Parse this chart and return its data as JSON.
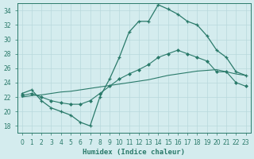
{
  "xlabel": "Humidex (Indice chaleur)",
  "bg_color": "#d4ecee",
  "grid_color": "#b8d8dc",
  "line_color": "#2a7a6a",
  "xlim": [
    -0.5,
    23.5
  ],
  "ylim": [
    17,
    35
  ],
  "yticks": [
    18,
    20,
    22,
    24,
    26,
    28,
    30,
    32,
    34
  ],
  "xticks": [
    0,
    1,
    2,
    3,
    4,
    5,
    6,
    7,
    8,
    9,
    10,
    11,
    12,
    13,
    14,
    15,
    16,
    17,
    18,
    19,
    20,
    21,
    22,
    23
  ],
  "series1_x": [
    0,
    1,
    2,
    3,
    4,
    5,
    6,
    7,
    8,
    9,
    10,
    11,
    12,
    13,
    14,
    15,
    16,
    17,
    18,
    19,
    20,
    21,
    22,
    23
  ],
  "series1_y": [
    22.5,
    23.0,
    21.5,
    20.5,
    20.0,
    19.5,
    18.5,
    18.0,
    22.0,
    24.5,
    27.5,
    31.0,
    32.5,
    32.5,
    34.8,
    34.2,
    33.5,
    32.5,
    32.0,
    30.5,
    28.5,
    27.5,
    25.5,
    25.0
  ],
  "series2_x": [
    0,
    1,
    2,
    3,
    4,
    5,
    6,
    7,
    8,
    9,
    10,
    11,
    12,
    13,
    14,
    15,
    16,
    17,
    18,
    19,
    20,
    21,
    22,
    23
  ],
  "series2_y": [
    22.2,
    22.5,
    22.0,
    21.5,
    21.2,
    21.0,
    21.0,
    21.5,
    22.5,
    23.5,
    24.5,
    25.2,
    25.8,
    26.5,
    27.5,
    28.0,
    28.5,
    28.0,
    27.5,
    27.0,
    25.5,
    25.5,
    24.0,
    23.5
  ],
  "series3_x": [
    0,
    1,
    2,
    3,
    4,
    5,
    6,
    7,
    8,
    9,
    10,
    11,
    12,
    13,
    14,
    15,
    16,
    17,
    18,
    19,
    20,
    21,
    22,
    23
  ],
  "series3_y": [
    22.0,
    22.2,
    22.3,
    22.5,
    22.7,
    22.8,
    23.0,
    23.2,
    23.4,
    23.6,
    23.8,
    24.0,
    24.2,
    24.4,
    24.7,
    25.0,
    25.2,
    25.4,
    25.6,
    25.7,
    25.8,
    25.5,
    25.2,
    25.0
  ]
}
